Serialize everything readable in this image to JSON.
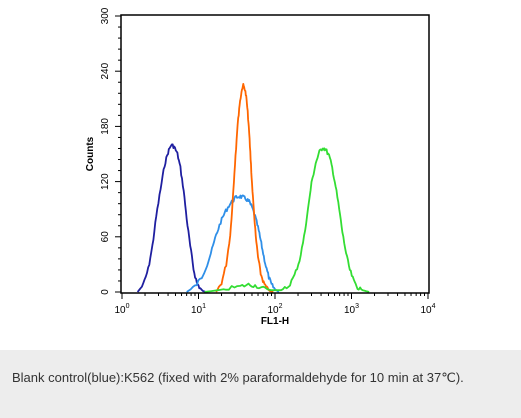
{
  "chart_data": {
    "type": "line",
    "title": "",
    "xlabel": "FL1-H",
    "ylabel": "Counts",
    "x_scale": "log",
    "xlim": [
      1,
      10000
    ],
    "ylim": [
      0,
      300
    ],
    "x_ticks": [
      {
        "value": 1,
        "base": "10",
        "exp": "0"
      },
      {
        "value": 10,
        "base": "10",
        "exp": "1"
      },
      {
        "value": 100,
        "base": "10",
        "exp": "2"
      },
      {
        "value": 1000,
        "base": "10",
        "exp": "3"
      },
      {
        "value": 10000,
        "base": "10",
        "exp": "4"
      }
    ],
    "y_ticks": [
      "0",
      "60",
      "120",
      "180",
      "240",
      "300"
    ],
    "grid": false,
    "legend": "none",
    "series": [
      {
        "color": "#1f1fa0",
        "x": [
          1.6,
          1.9,
          2.2,
          2.5,
          2.8,
          3.2,
          3.6,
          4.0,
          4.4,
          4.8,
          5.3,
          5.8,
          6.4,
          7.0,
          7.8,
          8.6,
          9.5,
          10.5,
          11.5,
          12.5
        ],
        "y": [
          0,
          8,
          25,
          50,
          82,
          112,
          138,
          152,
          160,
          158,
          150,
          135,
          110,
          80,
          50,
          25,
          10,
          4,
          1,
          0
        ]
      },
      {
        "color": "#2f8fe8",
        "x": [
          7,
          9,
          11,
          13,
          15,
          17,
          19.5,
          22,
          25,
          28,
          31,
          34.5,
          38,
          42,
          46,
          50,
          55,
          60,
          65,
          70,
          76,
          83,
          90,
          100,
          112
        ],
        "y": [
          0,
          6,
          16,
          30,
          46,
          62,
          76,
          86,
          94,
          99,
          103,
          104,
          103,
          101,
          98,
          92,
          82,
          70,
          56,
          42,
          28,
          16,
          8,
          3,
          0
        ]
      },
      {
        "color": "#ff6600",
        "x": [
          17,
          20,
          23,
          26,
          28,
          30,
          32,
          34,
          36,
          38,
          40,
          42,
          44,
          46,
          48,
          50,
          53,
          56,
          60,
          65,
          71,
          78,
          86,
          95
        ],
        "y": [
          0,
          10,
          30,
          62,
          100,
          140,
          175,
          200,
          215,
          225,
          222,
          212,
          195,
          172,
          145,
          118,
          88,
          60,
          38,
          20,
          10,
          4,
          1,
          0
        ]
      },
      {
        "color": "#33dd33",
        "x": [
          12,
          18,
          25,
          35,
          45,
          55,
          70,
          90,
          120,
          150,
          180,
          210,
          240,
          270,
          300,
          340,
          380,
          420,
          460,
          510,
          560,
          620,
          690,
          760,
          850,
          950,
          1070,
          1200,
          1400,
          1700
        ],
        "y": [
          0,
          2,
          4,
          6,
          8,
          7,
          4,
          2,
          2,
          6,
          18,
          35,
          60,
          90,
          118,
          140,
          152,
          157,
          155,
          148,
          135,
          115,
          90,
          65,
          42,
          24,
          12,
          5,
          2,
          0
        ]
      }
    ]
  },
  "caption": {
    "text": "Blank control(blue):K562 (fixed with 2% paraformaldehyde for 10 min at 37℃)."
  }
}
